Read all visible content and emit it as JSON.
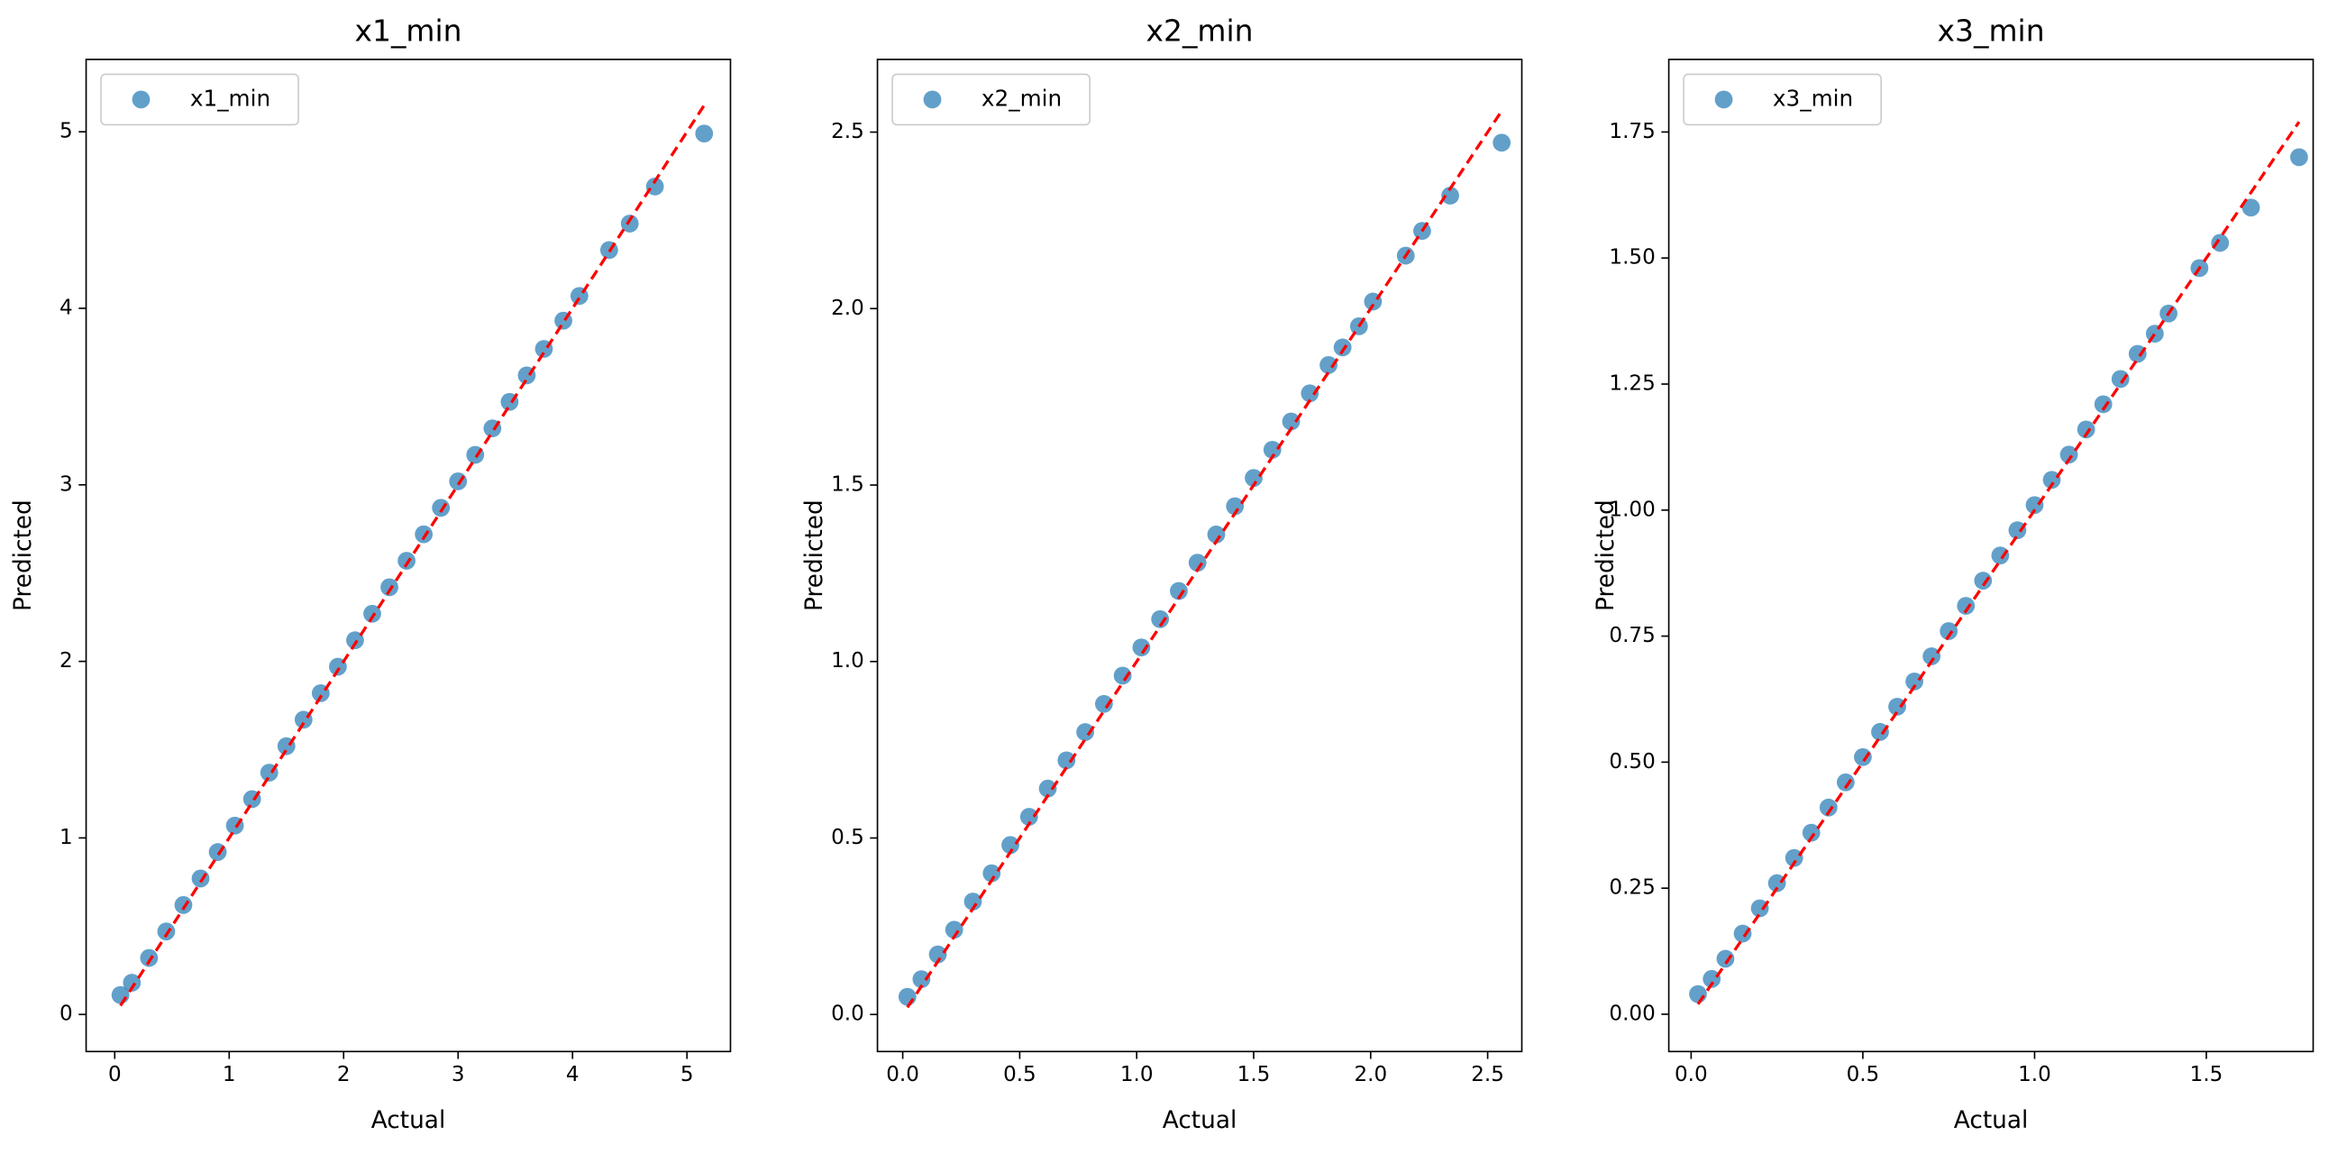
{
  "chart_data": [
    {
      "type": "scatter",
      "title": "x1_min",
      "x_label": "Actual",
      "y_label": "Predicted",
      "legend": "upper left",
      "xlim": [
        -0.25,
        5.38
      ],
      "ylim": [
        -0.21,
        5.41
      ],
      "xticks": [
        0,
        1,
        2,
        3,
        4,
        5
      ],
      "yticks": [
        0,
        1,
        2,
        3,
        4,
        5
      ],
      "series": [
        {
          "name": "x1_min",
          "color": "#1f77b4",
          "x": [
            0.05,
            0.15,
            0.3,
            0.45,
            0.6,
            0.75,
            0.9,
            1.05,
            1.2,
            1.35,
            1.5,
            1.65,
            1.8,
            1.95,
            2.1,
            2.25,
            2.4,
            2.55,
            2.7,
            2.85,
            3.0,
            3.15,
            3.3,
            3.45,
            3.6,
            3.75,
            3.92,
            4.06,
            4.32,
            4.5,
            4.72,
            5.15
          ],
          "values": [
            0.11,
            0.18,
            0.32,
            0.47,
            0.62,
            0.77,
            0.92,
            1.07,
            1.22,
            1.37,
            1.52,
            1.67,
            1.82,
            1.97,
            2.12,
            2.27,
            2.42,
            2.57,
            2.72,
            2.87,
            3.02,
            3.17,
            3.32,
            3.47,
            3.62,
            3.77,
            3.93,
            4.07,
            4.33,
            4.48,
            4.69,
            4.99
          ]
        }
      ],
      "reference_line": {
        "color": "#ff0000",
        "x": [
          0.05,
          5.15
        ],
        "y": [
          0.05,
          5.15
        ]
      }
    },
    {
      "type": "scatter",
      "title": "x2_min",
      "x_label": "Actual",
      "y_label": "Predicted",
      "legend": "upper left",
      "xlim": [
        -0.108,
        2.646
      ],
      "ylim": [
        -0.105,
        2.706
      ],
      "xticks": [
        {
          "value": 0,
          "label": "0.0"
        },
        0.5,
        {
          "value": 1,
          "label": "1.0"
        },
        1.5,
        {
          "value": 2,
          "label": "2.0"
        },
        2.5
      ],
      "yticks": [
        {
          "value": 0,
          "label": "0.0"
        },
        0.5,
        {
          "value": 1,
          "label": "1.0"
        },
        1.5,
        {
          "value": 2,
          "label": "2.0"
        },
        2.5
      ],
      "series": [
        {
          "name": "x2_min",
          "color": "#1f77b4",
          "x": [
            0.02,
            0.08,
            0.15,
            0.22,
            0.3,
            0.38,
            0.46,
            0.54,
            0.62,
            0.7,
            0.78,
            0.86,
            0.94,
            1.02,
            1.1,
            1.18,
            1.26,
            1.34,
            1.42,
            1.5,
            1.58,
            1.66,
            1.74,
            1.82,
            1.88,
            1.95,
            2.01,
            2.15,
            2.22,
            2.34,
            2.56
          ],
          "values": [
            0.05,
            0.1,
            0.17,
            0.24,
            0.32,
            0.4,
            0.48,
            0.56,
            0.64,
            0.72,
            0.8,
            0.88,
            0.96,
            1.04,
            1.12,
            1.2,
            1.28,
            1.36,
            1.44,
            1.52,
            1.6,
            1.68,
            1.76,
            1.84,
            1.89,
            1.95,
            2.02,
            2.15,
            2.22,
            2.32,
            2.47
          ]
        }
      ],
      "reference_line": {
        "color": "#ff0000",
        "x": [
          0.02,
          2.56
        ],
        "y": [
          0.02,
          2.56
        ]
      }
    },
    {
      "type": "scatter",
      "title": "x3_min",
      "x_label": "Actual",
      "y_label": "Predicted",
      "legend": "upper left",
      "xlim": [
        -0.065,
        1.811
      ],
      "ylim": [
        -0.074,
        1.894
      ],
      "xticks": [
        {
          "value": 0,
          "label": "0.0"
        },
        0.5,
        {
          "value": 1,
          "label": "1.0"
        },
        1.5
      ],
      "yticks": [
        {
          "value": 0,
          "label": "0.00"
        },
        0.25,
        {
          "value": 0.5,
          "label": "0.50"
        },
        0.75,
        {
          "value": 1,
          "label": "1.00"
        },
        1.25,
        {
          "value": 1.5,
          "label": "1.50"
        },
        1.75
      ],
      "series": [
        {
          "name": "x3_min",
          "color": "#1f77b4",
          "x": [
            0.02,
            0.06,
            0.1,
            0.15,
            0.2,
            0.25,
            0.3,
            0.35,
            0.4,
            0.45,
            0.5,
            0.55,
            0.6,
            0.65,
            0.7,
            0.75,
            0.8,
            0.85,
            0.9,
            0.95,
            1.0,
            1.05,
            1.1,
            1.15,
            1.2,
            1.25,
            1.3,
            1.35,
            1.39,
            1.48,
            1.54,
            1.63,
            1.77
          ],
          "values": [
            0.04,
            0.07,
            0.11,
            0.16,
            0.21,
            0.26,
            0.31,
            0.36,
            0.41,
            0.46,
            0.51,
            0.56,
            0.61,
            0.66,
            0.71,
            0.76,
            0.81,
            0.86,
            0.91,
            0.96,
            1.01,
            1.06,
            1.11,
            1.16,
            1.21,
            1.26,
            1.31,
            1.35,
            1.39,
            1.48,
            1.53,
            1.6,
            1.7
          ]
        }
      ],
      "reference_line": {
        "color": "#ff0000",
        "x": [
          0.02,
          1.77
        ],
        "y": [
          0.02,
          1.77
        ]
      }
    }
  ]
}
